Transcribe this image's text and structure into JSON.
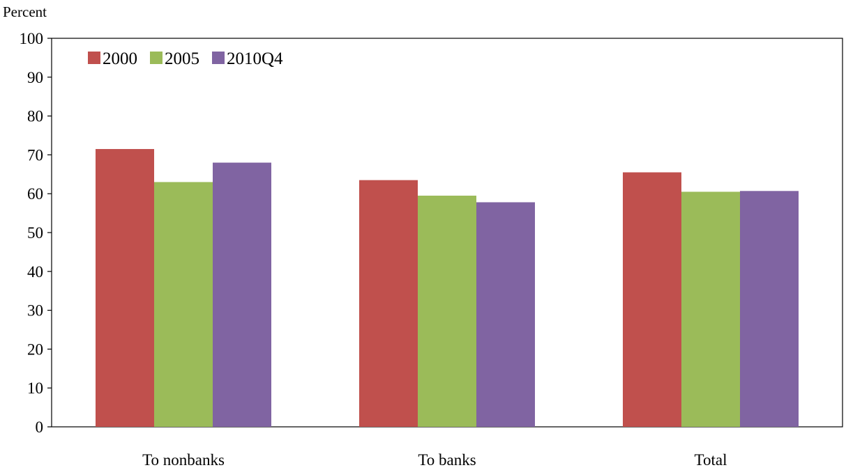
{
  "chart_data": {
    "type": "bar",
    "ylabel": "Percent",
    "ylim": [
      0,
      100
    ],
    "yticks": [
      0,
      10,
      20,
      30,
      40,
      50,
      60,
      70,
      80,
      90,
      100
    ],
    "categories": [
      "To nonbanks",
      "To banks",
      "Total"
    ],
    "series": [
      {
        "name": "2000",
        "color": "#c0504d",
        "values": [
          71.5,
          63.5,
          65.5
        ]
      },
      {
        "name": "2005",
        "color": "#9bbb59",
        "values": [
          63,
          59.5,
          60.5
        ]
      },
      {
        "name": "2010Q4",
        "color": "#8064a2",
        "values": [
          68,
          57.8,
          60.7
        ]
      }
    ],
    "legend": "top-left",
    "grid": false
  }
}
